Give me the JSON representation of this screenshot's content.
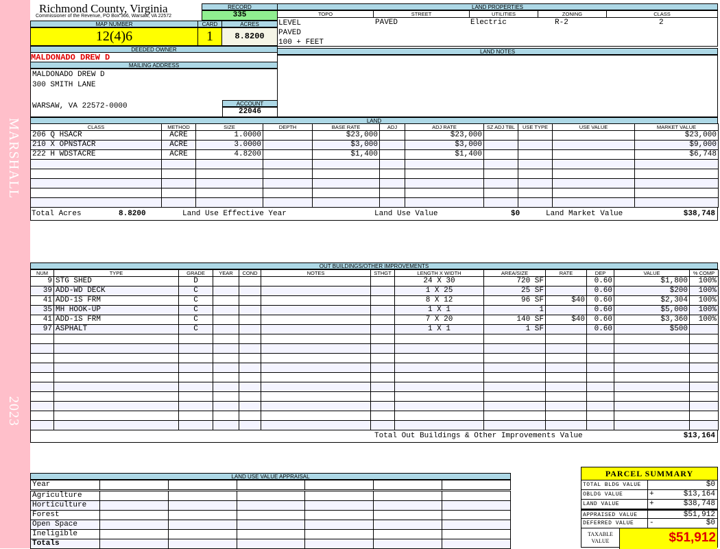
{
  "sidebar": {
    "name": "MARSHALL",
    "year": "2023",
    "color": "#ffbfca"
  },
  "header": {
    "title": "Richmond County, Virginia",
    "subtitle": "Commissioner of the Revenue, PO Box 366, Warsaw, VA 22572",
    "record_label": "RECORD",
    "record": "335"
  },
  "parcel": {
    "map_label": "MAP NUMBER",
    "map": "12(4)6",
    "card_label": "CARD",
    "card": "1",
    "acres_label": "ACRES",
    "acres": "8.8200"
  },
  "owner": {
    "label": "DEEDED OWNER",
    "name": "MALDONADO DREW D"
  },
  "mailing": {
    "label": "MAILING ADDRESS",
    "lines": [
      "MALDONADO DREW D",
      "300 SMITH LANE",
      "",
      "WARSAW, VA 22572-0000"
    ],
    "account_label": "ACCOUNT",
    "account": "22046"
  },
  "land_properties": {
    "label": "LAND PROPERTIES",
    "columns": [
      "TOPO",
      "STREET",
      "UTILITIES",
      "ZONING",
      "CLASS"
    ],
    "topo": [
      "LEVEL",
      "PAVED",
      "100 + FEET"
    ],
    "street": "PAVED",
    "utilities": "Electric",
    "zoning": "R-2",
    "class": "2"
  },
  "land_notes": {
    "label": "LAND NOTES"
  },
  "land": {
    "label": "LAND",
    "columns": [
      "CLASS",
      "METHOD",
      "SIZE",
      "DEPTH",
      "BASE RATE",
      "ADJ",
      "ADJ RATE",
      "SZ ADJ TBL",
      "USE TYPE",
      "USE VALUE",
      "MARKET VALUE"
    ],
    "rows": [
      [
        "206 Q HSACR",
        "ACRE",
        "1.0000",
        "",
        "$23,000",
        "",
        "$23,000",
        "",
        "",
        "",
        "$23,000"
      ],
      [
        "210 X OPNSTACR",
        "ACRE",
        "3.0000",
        "",
        "$3,000",
        "",
        "$3,000",
        "",
        "",
        "",
        "$9,000"
      ],
      [
        "222 H WDSTACRE",
        "ACRE",
        "4.8200",
        "",
        "$1,400",
        "",
        "$1,400",
        "",
        "",
        "",
        "$6,748"
      ]
    ],
    "totals": {
      "acres_label": "Total Acres",
      "acres": "8.8200",
      "effective_year_label": "Land Use Effective Year",
      "effective_year": "",
      "use_value_label": "Land Use Value",
      "use_value": "$0",
      "market_label": "Land Market Value",
      "market": "$38,748"
    }
  },
  "outbuildings": {
    "label": "OUT BUILDINGS/OTHER IMPROVEMENTS",
    "columns": [
      "NUM",
      "TYPE",
      "GRADE",
      "YEAR",
      "COND",
      "NOTES",
      "STHGT",
      "LENGTH X WIDTH",
      "AREA/SIZE",
      "RATE",
      "DEP",
      "VALUE",
      "% COMP"
    ],
    "rows": [
      [
        "9",
        "STG SHED",
        "D",
        "",
        "",
        "",
        "",
        "24 X 30",
        "720 SF",
        "",
        "0.60",
        "$1,800",
        "100%"
      ],
      [
        "39",
        "ADD-WD DECK",
        "C",
        "",
        "",
        "",
        "",
        "1 X 25",
        "25 SF",
        "",
        "0.60",
        "$200",
        "100%"
      ],
      [
        "41",
        "ADD-1S FRM",
        "C",
        "",
        "",
        "",
        "",
        "8 X 12",
        "96 SF",
        "$40",
        "0.60",
        "$2,304",
        "100%"
      ],
      [
        "35",
        "MH HOOK-UP",
        "C",
        "",
        "",
        "",
        "",
        "1 X 1",
        "1",
        "",
        "0.60",
        "$5,000",
        "100%"
      ],
      [
        "41",
        "ADD-1S FRM",
        "C",
        "",
        "",
        "",
        "",
        "7 X 20",
        "140 SF",
        "$40",
        "0.60",
        "$3,360",
        "100%"
      ],
      [
        "97",
        "ASPHALT",
        "C",
        "",
        "",
        "",
        "",
        "1 X 1",
        "1 SF",
        "",
        "0.60",
        "$500",
        ""
      ]
    ],
    "total_label": "Total Out Buildings & Other Improvements Value",
    "total": "$13,164"
  },
  "land_use_appraisal": {
    "label": "LAND USE VALUE APPRAISAL",
    "year_label": "Year",
    "rows": [
      "Agriculture",
      "Horticulture",
      "Forest",
      "Open Space",
      "Ineligible"
    ],
    "totals_label": "Totals"
  },
  "summary": {
    "title": "PARCEL SUMMARY",
    "rows": [
      {
        "label": "TOTAL BLDG VALUE",
        "op": "",
        "value": "$0"
      },
      {
        "label": "OBLDG VALUE",
        "op": "+",
        "value": "$13,164"
      },
      {
        "label": "LAND VALUE",
        "op": "+",
        "value": "$38,748"
      },
      {
        "label": "APPRAISED VALUE",
        "op": "",
        "value": "$51,912"
      },
      {
        "label": "DEFERRED VALUE",
        "op": "-",
        "value": "$0"
      }
    ],
    "taxable_label": "TAXABLE VALUE",
    "taxable": "$51,912"
  },
  "colors": {
    "header_blue": "#add8e6",
    "record_green": "#90ee90",
    "highlight_yellow": "#ffff00",
    "owner_red": "#e00000"
  }
}
